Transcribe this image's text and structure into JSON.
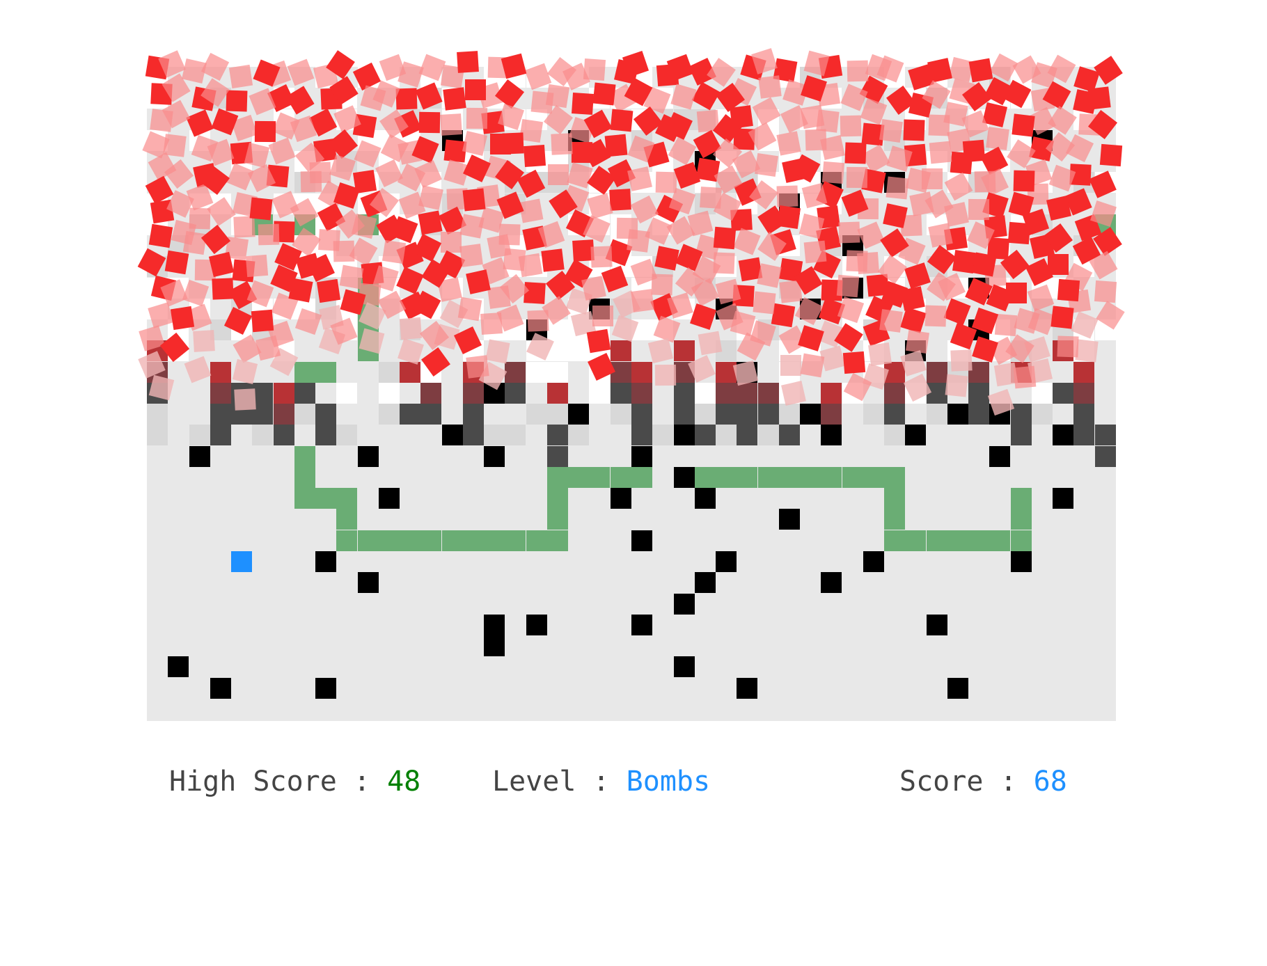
{
  "game": {
    "board": {
      "cols": 46,
      "rows": 31,
      "background": "#e8e8e8"
    },
    "colors": {
      "snake": "#6aad74",
      "bomb": "#000000",
      "food": "#1e90ff",
      "label": "#444444",
      "high_score_value": "#008000",
      "level_value": "#1e90ff",
      "score_value": "#1e90ff"
    },
    "food": {
      "col": 4,
      "row": 23
    },
    "snake": [
      [
        7,
        18
      ],
      [
        7,
        19
      ],
      [
        7,
        20
      ],
      [
        8,
        20
      ],
      [
        9,
        20
      ],
      [
        9,
        21
      ],
      [
        9,
        22
      ],
      [
        10,
        22
      ],
      [
        11,
        22
      ],
      [
        12,
        22
      ],
      [
        13,
        22
      ],
      [
        14,
        22
      ],
      [
        15,
        22
      ],
      [
        16,
        22
      ],
      [
        17,
        22
      ],
      [
        18,
        22
      ],
      [
        19,
        22
      ],
      [
        19,
        21
      ],
      [
        19,
        20
      ],
      [
        19,
        19
      ],
      [
        20,
        19
      ],
      [
        21,
        19
      ],
      [
        22,
        19
      ],
      [
        23,
        19
      ],
      [
        25,
        19
      ],
      [
        26,
        19
      ],
      [
        27,
        19
      ],
      [
        28,
        19
      ],
      [
        29,
        19
      ],
      [
        30,
        19
      ],
      [
        31,
        19
      ],
      [
        32,
        19
      ],
      [
        33,
        19
      ],
      [
        34,
        19
      ],
      [
        35,
        19
      ],
      [
        35,
        20
      ],
      [
        35,
        21
      ],
      [
        35,
        22
      ],
      [
        36,
        22
      ],
      [
        37,
        22
      ],
      [
        38,
        22
      ],
      [
        39,
        22
      ],
      [
        40,
        22
      ],
      [
        41,
        22
      ],
      [
        41,
        21
      ],
      [
        41,
        20
      ]
    ],
    "bombs": [
      [
        2,
        18
      ],
      [
        10,
        18
      ],
      [
        16,
        18
      ],
      [
        23,
        18
      ],
      [
        25,
        19
      ],
      [
        11,
        20
      ],
      [
        22,
        20
      ],
      [
        26,
        20
      ],
      [
        30,
        21
      ],
      [
        23,
        22
      ],
      [
        8,
        23
      ],
      [
        27,
        23
      ],
      [
        34,
        23
      ],
      [
        41,
        23
      ],
      [
        10,
        24
      ],
      [
        26,
        24
      ],
      [
        32,
        24
      ],
      [
        25,
        25
      ],
      [
        16,
        26
      ],
      [
        18,
        26
      ],
      [
        23,
        26
      ],
      [
        37,
        26
      ],
      [
        16,
        27
      ],
      [
        1,
        28
      ],
      [
        25,
        28
      ],
      [
        3,
        29
      ],
      [
        8,
        29
      ],
      [
        28,
        29
      ],
      [
        38,
        29
      ],
      [
        14,
        17
      ],
      [
        25,
        17
      ],
      [
        32,
        17
      ],
      [
        36,
        17
      ],
      [
        40,
        18
      ],
      [
        43,
        20
      ],
      [
        20,
        16
      ],
      [
        16,
        15
      ],
      [
        31,
        16
      ],
      [
        38,
        16
      ],
      [
        40,
        16
      ],
      [
        43,
        17
      ],
      [
        28,
        14
      ],
      [
        36,
        13
      ],
      [
        18,
        12
      ],
      [
        21,
        11
      ],
      [
        27,
        11
      ],
      [
        31,
        11
      ],
      [
        33,
        10
      ],
      [
        39,
        10
      ],
      [
        39,
        12
      ],
      [
        14,
        3
      ],
      [
        20,
        3
      ],
      [
        42,
        3
      ],
      [
        26,
        4
      ],
      [
        32,
        5
      ],
      [
        35,
        5
      ],
      [
        30,
        6
      ],
      [
        33,
        8
      ]
    ],
    "hud": {
      "high_score_label": "High Score : ",
      "high_score_value": "48",
      "level_label": "Level : ",
      "level_value": "Bombs",
      "score_label": "Score : ",
      "score_value": "68"
    }
  }
}
